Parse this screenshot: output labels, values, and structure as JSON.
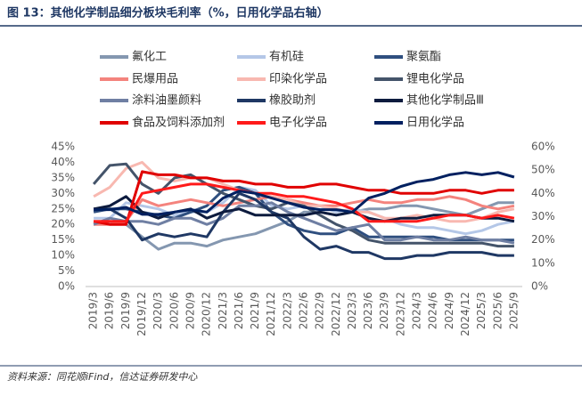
{
  "chart_data": {
    "type": "line",
    "title": "图 13：其他化学制品细分板块毛利率（%，日用化学品右轴）",
    "source": "资料来源：同花顺iFind，信达证券研发中心",
    "categories": [
      "2019/3",
      "2019/6",
      "2019/9",
      "2019/12",
      "2020/3",
      "2020/6",
      "2020/9",
      "2020/12",
      "2021/3",
      "2021/6",
      "2021/9",
      "2021/12",
      "2022/3",
      "2022/6",
      "2022/9",
      "2022/12",
      "2023/3",
      "2023/6",
      "2023/9",
      "2023/12",
      "2024/3",
      "2024/6",
      "2024/9",
      "2024/12",
      "2025/3",
      "2025/6",
      "2025/9"
    ],
    "ylim": [
      0,
      45
    ],
    "yticks": [
      {
        "value": 0,
        "label": "0%"
      },
      {
        "value": 5,
        "label": "5%"
      },
      {
        "value": 10,
        "label": "10%"
      },
      {
        "value": 15,
        "label": "15%"
      },
      {
        "value": 20,
        "label": "20%"
      },
      {
        "value": 25,
        "label": "25%"
      },
      {
        "value": 30,
        "label": "30%"
      },
      {
        "value": 35,
        "label": "35%"
      },
      {
        "value": 40,
        "label": "40%"
      },
      {
        "value": 45,
        "label": "45%"
      }
    ],
    "y2lim": [
      0,
      60
    ],
    "y2ticks": [
      {
        "value": 0,
        "label": "0%"
      },
      {
        "value": 10,
        "label": "10%"
      },
      {
        "value": 20,
        "label": "20%"
      },
      {
        "value": 30,
        "label": "30%"
      },
      {
        "value": 40,
        "label": "40%"
      },
      {
        "value": 50,
        "label": "50%"
      },
      {
        "value": 60,
        "label": "60%"
      }
    ],
    "series": [
      {
        "name": "氟化工",
        "color": "#8497b0",
        "values": [
          20,
          21,
          20,
          16,
          12,
          14,
          14,
          13,
          15,
          16,
          17,
          19,
          21,
          24,
          24,
          23,
          24,
          25,
          25,
          26,
          26,
          25,
          24,
          23,
          25,
          27,
          27
        ]
      },
      {
        "name": "有机硅",
        "color": "#b4c7e7",
        "values": [
          22,
          22,
          27,
          26,
          25,
          23,
          24,
          24,
          27,
          32,
          31,
          26,
          25,
          26,
          26,
          24,
          25,
          24,
          22,
          20,
          19,
          19,
          18,
          17,
          18,
          20,
          21
        ]
      },
      {
        "name": "聚氨酯",
        "color": "#2f4f7f",
        "values": [
          24,
          25,
          25,
          24,
          23,
          22,
          24,
          26,
          31,
          32,
          30,
          24,
          20,
          18,
          17,
          17,
          19,
          16,
          16,
          16,
          16,
          16,
          15,
          15,
          15,
          15,
          15
        ]
      },
      {
        "name": "民爆用品",
        "color": "#f4837d",
        "values": [
          20,
          20,
          21,
          28,
          26,
          27,
          28,
          27,
          26,
          27,
          28,
          29,
          28,
          27,
          26,
          26,
          27,
          28,
          27,
          27,
          28,
          28,
          29,
          28,
          26,
          25,
          26
        ]
      },
      {
        "name": "印染化学品",
        "color": "#f8b8b0",
        "values": [
          29,
          32,
          38,
          40,
          35,
          34,
          35,
          35,
          33,
          31,
          30,
          29,
          28,
          26,
          26,
          25,
          24,
          24,
          22,
          22,
          23,
          22,
          21,
          21,
          22,
          24,
          25
        ]
      },
      {
        "name": "锂电化学品",
        "color": "#44546a",
        "values": [
          33,
          39,
          39.5,
          33,
          30,
          35,
          36,
          33,
          30,
          28,
          26,
          25,
          27,
          26,
          23,
          20,
          18,
          15,
          14,
          14,
          14,
          14,
          14,
          14,
          14,
          13,
          13
        ]
      },
      {
        "name": "涂料油墨颜料",
        "color": "#6f7fa3",
        "values": [
          20,
          22,
          21,
          21,
          20,
          22,
          22,
          20,
          22,
          26,
          26,
          27,
          24,
          22,
          20,
          18,
          19,
          20,
          15,
          15,
          16,
          15,
          15,
          16,
          15,
          15,
          14
        ]
      },
      {
        "name": "橡胶助剂",
        "color": "#1f3864",
        "values": [
          25,
          25,
          22,
          15,
          17,
          16,
          17,
          16,
          24,
          30,
          28,
          24,
          22,
          16,
          12,
          13,
          11,
          11,
          9,
          9,
          10,
          10,
          11,
          11,
          11,
          10,
          10
        ]
      },
      {
        "name": "其他化学制品Ⅲ",
        "color": "#0d1b3e",
        "values": [
          25,
          26,
          29,
          24,
          22,
          24,
          25,
          22,
          24,
          25,
          23,
          23,
          23,
          23,
          24,
          23,
          24,
          22,
          21,
          22,
          22,
          23,
          23,
          23,
          22,
          22,
          21
        ]
      },
      {
        "name": "食品及饲料添加剂",
        "color": "#e00000",
        "values": [
          21,
          20,
          20,
          37,
          36,
          36,
          35,
          35,
          34,
          34,
          33,
          33,
          32,
          32,
          33,
          33,
          32,
          31,
          31,
          30,
          30,
          30,
          31,
          31,
          30,
          31,
          31
        ]
      },
      {
        "name": "电子化学品",
        "color": "#ff1a1a",
        "values": [
          21,
          21,
          21,
          30,
          31,
          32,
          33,
          33,
          32,
          31,
          30,
          30,
          29,
          29,
          28,
          27,
          25,
          21,
          21,
          21,
          21,
          22,
          23,
          23,
          22,
          23,
          22
        ]
      },
      {
        "name": "日用化学品",
        "color": "#002060",
        "axis": "y2",
        "values": [
          33,
          33,
          34,
          31,
          31,
          32,
          33,
          32,
          38,
          41,
          40,
          38,
          36,
          34,
          33,
          33,
          32,
          38,
          40,
          43,
          45,
          46,
          48,
          49,
          48,
          49,
          47
        ]
      }
    ]
  }
}
